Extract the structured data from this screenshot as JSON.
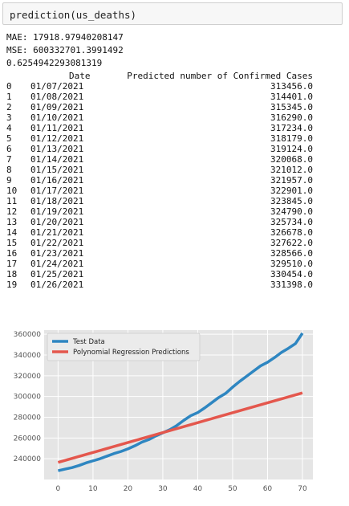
{
  "cell": {
    "code": "prediction(us_deaths)"
  },
  "output": {
    "mae": "MAE: 17918.97940208147",
    "mse": "MSE: 600332701.3991492",
    "score": "0.6254942293081319",
    "columns": [
      "Date",
      "Predicted number of Confirmed Cases"
    ],
    "rows": [
      {
        "idx": "0",
        "date": "01/07/2021",
        "pred": "313456.0"
      },
      {
        "idx": "1",
        "date": "01/08/2021",
        "pred": "314401.0"
      },
      {
        "idx": "2",
        "date": "01/09/2021",
        "pred": "315345.0"
      },
      {
        "idx": "3",
        "date": "01/10/2021",
        "pred": "316290.0"
      },
      {
        "idx": "4",
        "date": "01/11/2021",
        "pred": "317234.0"
      },
      {
        "idx": "5",
        "date": "01/12/2021",
        "pred": "318179.0"
      },
      {
        "idx": "6",
        "date": "01/13/2021",
        "pred": "319124.0"
      },
      {
        "idx": "7",
        "date": "01/14/2021",
        "pred": "320068.0"
      },
      {
        "idx": "8",
        "date": "01/15/2021",
        "pred": "321012.0"
      },
      {
        "idx": "9",
        "date": "01/16/2021",
        "pred": "321957.0"
      },
      {
        "idx": "10",
        "date": "01/17/2021",
        "pred": "322901.0"
      },
      {
        "idx": "11",
        "date": "01/18/2021",
        "pred": "323845.0"
      },
      {
        "idx": "12",
        "date": "01/19/2021",
        "pred": "324790.0"
      },
      {
        "idx": "13",
        "date": "01/20/2021",
        "pred": "325734.0"
      },
      {
        "idx": "14",
        "date": "01/21/2021",
        "pred": "326678.0"
      },
      {
        "idx": "15",
        "date": "01/22/2021",
        "pred": "327622.0"
      },
      {
        "idx": "16",
        "date": "01/23/2021",
        "pred": "328566.0"
      },
      {
        "idx": "17",
        "date": "01/24/2021",
        "pred": "329510.0"
      },
      {
        "idx": "18",
        "date": "01/25/2021",
        "pred": "330454.0"
      },
      {
        "idx": "19",
        "date": "01/26/2021",
        "pred": "331398.0"
      }
    ]
  },
  "chart_data": {
    "type": "line",
    "title": "",
    "xlabel": "",
    "ylabel": "",
    "xlim": [
      -4,
      73
    ],
    "ylim": [
      220000,
      364000
    ],
    "xticks": [
      0,
      10,
      20,
      30,
      40,
      50,
      60,
      70
    ],
    "yticks": [
      240000,
      260000,
      280000,
      300000,
      320000,
      340000,
      360000
    ],
    "grid": true,
    "legend_position": "top-left",
    "series": [
      {
        "name": "Test Data",
        "color": "#2e86c1",
        "x": [
          0,
          2,
          4,
          6,
          8,
          10,
          12,
          14,
          16,
          18,
          20,
          22,
          24,
          26,
          28,
          30,
          32,
          34,
          36,
          38,
          40,
          42,
          44,
          46,
          48,
          50,
          52,
          54,
          56,
          58,
          60,
          62,
          64,
          66,
          68,
          70
        ],
        "y": [
          228500,
          230000,
          231500,
          233500,
          236000,
          238000,
          240000,
          242500,
          245000,
          247000,
          249500,
          252500,
          256000,
          258500,
          262000,
          265000,
          268000,
          272000,
          277000,
          281500,
          284500,
          289000,
          294000,
          299000,
          303000,
          309000,
          314500,
          319500,
          324500,
          329500,
          333000,
          337500,
          342500,
          346500,
          351000,
          361000
        ]
      },
      {
        "name": "Polynomial Regression Predictions",
        "color": "#e4574d",
        "x": [
          0,
          70
        ],
        "y": [
          236500,
          303500
        ]
      }
    ]
  }
}
